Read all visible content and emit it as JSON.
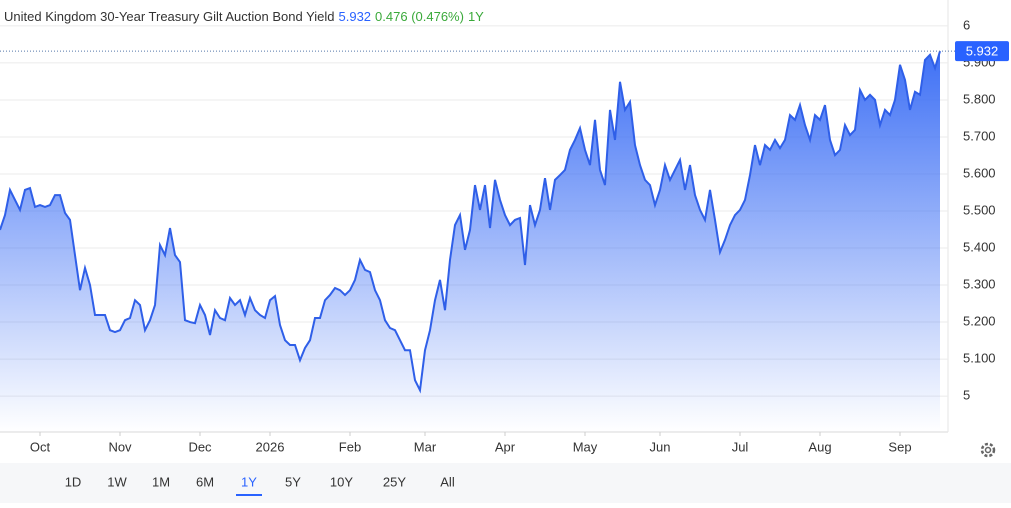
{
  "header": {
    "title": "United Kingdom 30-Year Treasury Gilt Auction Bond Yield",
    "value": "5.932",
    "change": "0.476 (0.476%)",
    "period": "1Y"
  },
  "ranges": [
    "1D",
    "1W",
    "1M",
    "6M",
    "1Y",
    "5Y",
    "10Y",
    "25Y",
    "All"
  ],
  "selected_range": "1Y",
  "chart_data": {
    "type": "area",
    "color": "#2f5fe8",
    "xlim": [
      0,
      188
    ],
    "xticks": [
      {
        "value": 8,
        "label": "Oct"
      },
      {
        "value": 24,
        "label": "Nov"
      },
      {
        "value": 40,
        "label": "Dec"
      },
      {
        "value": 54,
        "label": "2026"
      },
      {
        "value": 70,
        "label": "Feb"
      },
      {
        "value": 85,
        "label": "Mar"
      },
      {
        "value": 101,
        "label": "Apr"
      },
      {
        "value": 117,
        "label": "May"
      },
      {
        "value": 132,
        "label": "Jun"
      },
      {
        "value": 148,
        "label": "Jul"
      },
      {
        "value": 164,
        "label": "Aug"
      },
      {
        "value": 180,
        "label": "Sep"
      }
    ],
    "ylim": [
      4.903,
      6.07
    ],
    "yticks": [
      5,
      {
        "value": 5.1,
        "label": "5.100"
      },
      {
        "value": 5.2,
        "label": "5.200"
      },
      {
        "value": 5.3,
        "label": "5.300"
      },
      {
        "value": 5.4,
        "label": "5.400"
      },
      {
        "value": 5.5,
        "label": "5.500"
      },
      {
        "value": 5.6,
        "label": "5.600"
      },
      {
        "value": 5.7,
        "label": "5.700"
      },
      {
        "value": 5.8,
        "label": "5.800"
      },
      {
        "value": 5.9,
        "label": "5.900"
      },
      6
    ],
    "grid": true,
    "values": [
      5.449,
      5.489,
      5.557,
      5.53,
      5.503,
      5.557,
      5.562,
      5.511,
      5.516,
      5.511,
      5.516,
      5.543,
      5.543,
      5.495,
      5.476,
      5.381,
      5.286,
      5.346,
      5.3,
      5.219,
      5.219,
      5.219,
      5.178,
      5.173,
      5.178,
      5.205,
      5.211,
      5.259,
      5.246,
      5.178,
      5.205,
      5.246,
      5.408,
      5.381,
      5.454,
      5.381,
      5.362,
      5.205,
      5.2,
      5.197,
      5.246,
      5.219,
      5.165,
      5.232,
      5.211,
      5.205,
      5.265,
      5.246,
      5.259,
      5.219,
      5.265,
      5.232,
      5.219,
      5.211,
      5.259,
      5.27,
      5.192,
      5.151,
      5.138,
      5.138,
      5.097,
      5.13,
      5.151,
      5.211,
      5.211,
      5.259,
      5.273,
      5.292,
      5.286,
      5.273,
      5.286,
      5.314,
      5.368,
      5.341,
      5.335,
      5.286,
      5.259,
      5.205,
      5.184,
      5.178,
      5.151,
      5.124,
      5.124,
      5.043,
      5.016,
      5.124,
      5.178,
      5.259,
      5.314,
      5.232,
      5.368,
      5.462,
      5.489,
      5.395,
      5.449,
      5.57,
      5.503,
      5.57,
      5.454,
      5.584,
      5.53,
      5.489,
      5.462,
      5.476,
      5.481,
      5.354,
      5.516,
      5.462,
      5.503,
      5.589,
      5.503,
      5.584,
      5.597,
      5.611,
      5.665,
      5.692,
      5.724,
      5.665,
      5.624,
      5.746,
      5.611,
      5.57,
      5.773,
      5.692,
      5.849,
      5.773,
      5.795,
      5.678,
      5.624,
      5.584,
      5.57,
      5.516,
      5.557,
      5.624,
      5.584,
      5.611,
      5.638,
      5.557,
      5.624,
      5.543,
      5.503,
      5.476,
      5.557,
      5.476,
      5.389,
      5.422,
      5.462,
      5.489,
      5.503,
      5.53,
      5.597,
      5.678,
      5.624,
      5.678,
      5.665,
      5.692,
      5.67,
      5.692,
      5.759,
      5.746,
      5.786,
      5.732,
      5.692,
      5.759,
      5.746,
      5.786,
      5.692,
      5.651,
      5.665,
      5.732,
      5.705,
      5.719,
      5.827,
      5.8,
      5.814,
      5.8,
      5.732,
      5.773,
      5.759,
      5.8,
      5.895,
      5.854,
      5.773,
      5.822,
      5.814,
      5.908,
      5.922,
      5.886,
      5.932
    ]
  }
}
